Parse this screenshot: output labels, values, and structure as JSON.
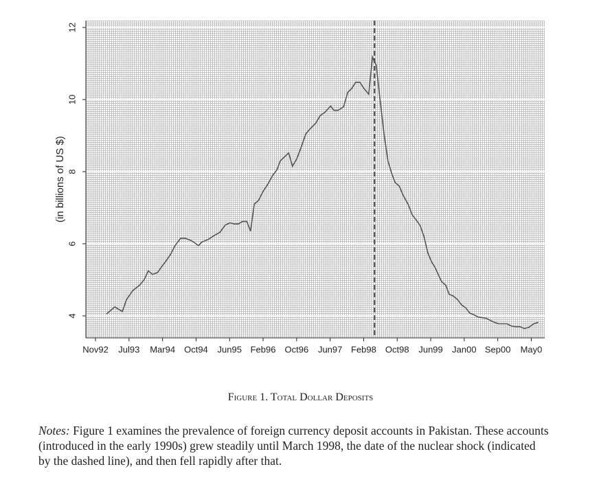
{
  "chart_data": {
    "type": "line",
    "ylabel": "(in billions of US $)",
    "x": [
      2.6,
      4.6,
      6.4,
      7.4,
      8.9,
      10.5,
      11.6,
      12.6,
      13.6,
      14.8,
      15.7,
      16.7,
      17.9,
      19.0,
      20.3,
      21.5,
      23.0,
      24.6,
      25.4,
      26.9,
      28.2,
      29.7,
      31.0,
      32.1,
      33.1,
      34.1,
      35.1,
      36.1,
      37.0,
      37.9,
      38.9,
      40.0,
      41.1,
      42.3,
      43.3,
      44.1,
      45.2,
      46.1,
      47.0,
      48.0,
      49.0,
      50.2,
      51.3,
      52.6,
      53.6,
      54.8,
      56.1,
      56.9,
      57.9,
      59.2,
      60.2,
      61.1,
      62.1,
      63.1,
      64.1,
      65.2,
      66.1,
      67.0,
      67.9,
      68.9,
      69.8,
      70.7,
      71.5,
      72.5,
      73.4,
      74.6,
      75.6,
      76.6,
      77.5,
      78.4,
      79.3,
      80.2,
      81.0,
      81.8,
      82.6,
      83.6,
      84.4,
      85.4,
      86.4,
      87.4,
      88.4,
      89.3,
      90.3,
      91.3,
      92.3,
      93.3,
      94.3,
      95.2,
      96.2,
      97.2,
      98.2,
      99.2,
      100.2,
      101.3,
      102.3,
      103.4,
      104.6,
      105.7
    ],
    "values": [
      4.05,
      4.25,
      4.12,
      4.45,
      4.7,
      4.85,
      5.0,
      5.25,
      5.15,
      5.2,
      5.35,
      5.5,
      5.7,
      5.95,
      6.15,
      6.15,
      6.08,
      5.95,
      6.05,
      6.12,
      6.22,
      6.32,
      6.52,
      6.58,
      6.55,
      6.55,
      6.62,
      6.62,
      6.35,
      7.1,
      7.2,
      7.45,
      7.65,
      7.9,
      8.05,
      8.3,
      8.42,
      8.52,
      8.15,
      8.35,
      8.65,
      9.05,
      9.2,
      9.35,
      9.55,
      9.65,
      9.82,
      9.7,
      9.7,
      9.8,
      10.2,
      10.3,
      10.48,
      10.48,
      10.3,
      10.15,
      11.18,
      10.95,
      10.0,
      9.0,
      8.3,
      7.95,
      7.7,
      7.6,
      7.35,
      7.1,
      6.8,
      6.65,
      6.5,
      6.2,
      5.75,
      5.5,
      5.35,
      5.15,
      4.95,
      4.85,
      4.6,
      4.55,
      4.45,
      4.3,
      4.22,
      4.08,
      4.03,
      3.97,
      3.95,
      3.93,
      3.87,
      3.82,
      3.78,
      3.78,
      3.78,
      3.72,
      3.7,
      3.7,
      3.65,
      3.68,
      3.78,
      3.82
    ],
    "color": "#555555",
    "xlim": [
      -2.3,
      107.2
    ],
    "xticks": [
      {
        "value": 0,
        "label": "Nov92"
      },
      {
        "value": 8,
        "label": "Jul93"
      },
      {
        "value": 16,
        "label": "Mar94"
      },
      {
        "value": 24,
        "label": "Oct94"
      },
      {
        "value": 32,
        "label": "Jun95"
      },
      {
        "value": 40,
        "label": "Feb96"
      },
      {
        "value": 48,
        "label": "Oct96"
      },
      {
        "value": 56,
        "label": "Jun97"
      },
      {
        "value": 64,
        "label": "Feb98"
      },
      {
        "value": 72,
        "label": "Oct98"
      },
      {
        "value": 80,
        "label": "Jun99"
      },
      {
        "value": 88,
        "label": "Jan00"
      },
      {
        "value": 96,
        "label": "Sep00"
      },
      {
        "value": 104,
        "label": "May0"
      }
    ],
    "ylim": [
      3.39,
      12.19
    ],
    "yticks": [
      4,
      6,
      8,
      10,
      12
    ],
    "grid": true,
    "vline": 66.6
  },
  "caption": "Figure 1. Total Dollar Deposits",
  "notes": {
    "label": "Notes:",
    "text": "Figure 1 examines the prevalence of foreign currency deposit accounts in Pakistan. These accounts (introduced in the early 1990s) grew steadily until March 1998, the date of the nuclear shock (indicated by the dashed line), and then fell rapidly after that."
  }
}
